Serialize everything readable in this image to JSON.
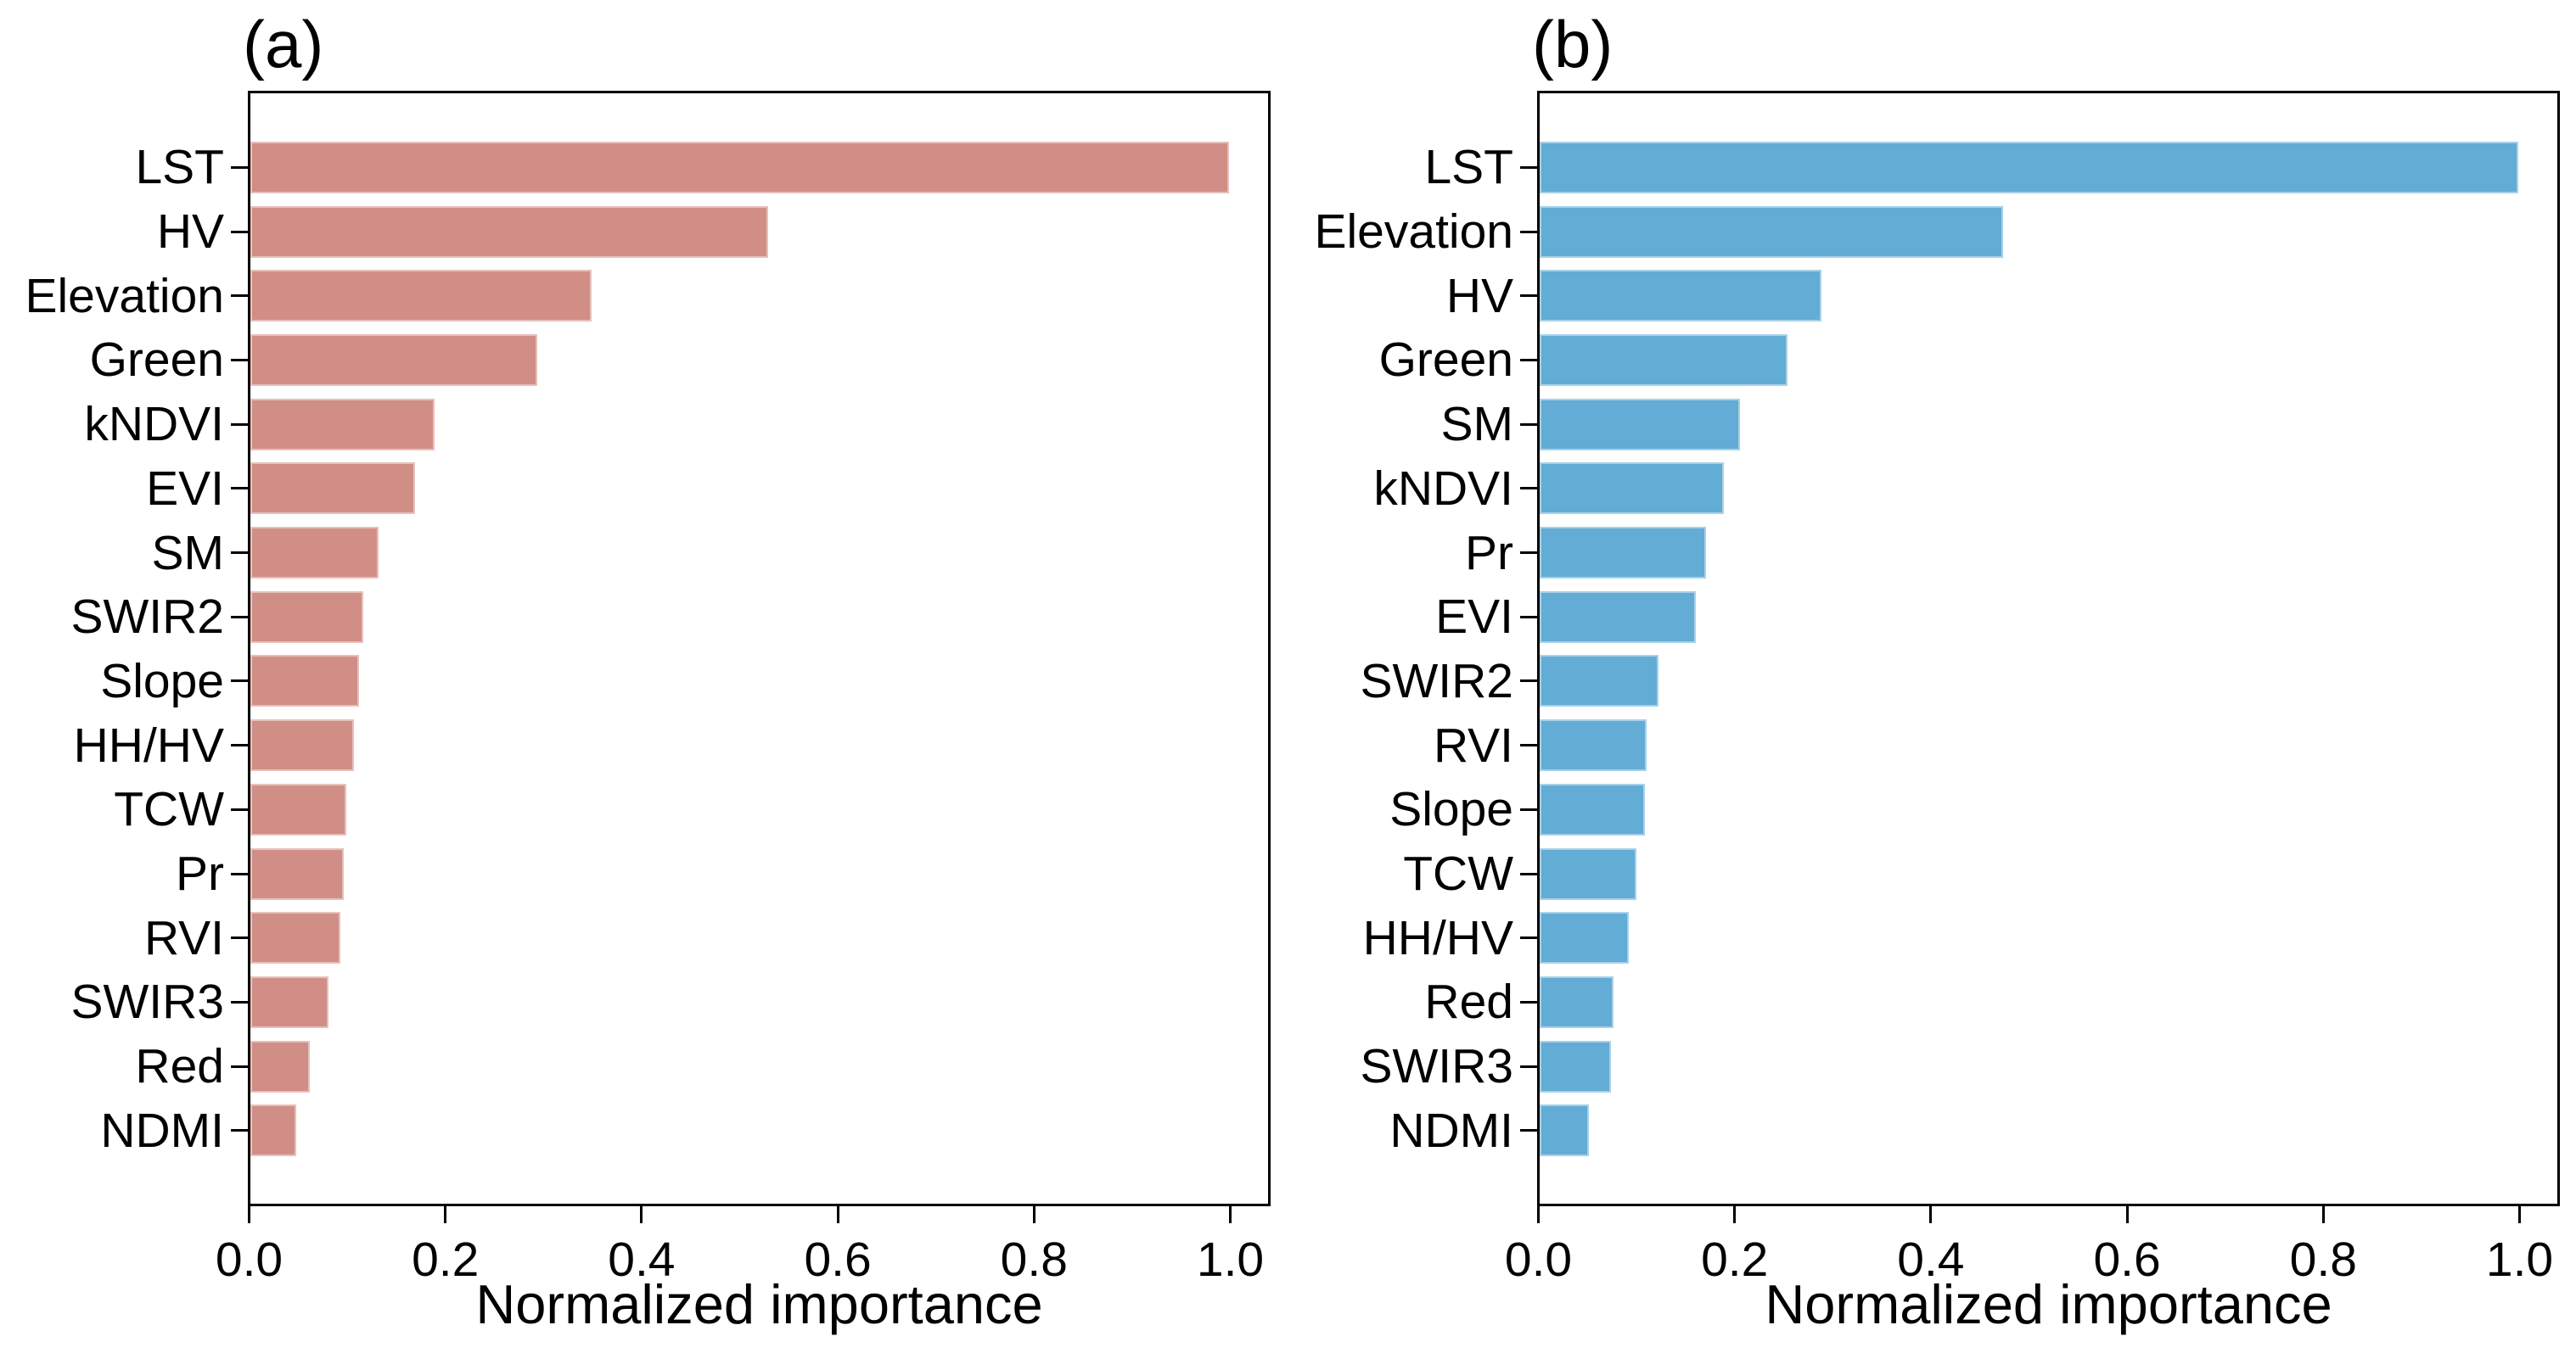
{
  "figure": {
    "background_color": "#ffffff",
    "axis_color": "#000000",
    "text_color": "#000000"
  },
  "chart_data": [
    {
      "type": "bar",
      "orientation": "horizontal",
      "panel_label": "(a)",
      "bar_color": "#d18e86",
      "xlabel": "Normalized importance",
      "xlim": [
        0,
        1.045
      ],
      "xticks": [
        0,
        0.2,
        0.4,
        0.6,
        0.8,
        1.0
      ],
      "xtick_labels": [
        "0.0",
        "0.2",
        "0.4",
        "0.6",
        "0.8",
        "1.0"
      ],
      "grid": false,
      "legend": "none",
      "categories": [
        "LST",
        "HV",
        "Elevation",
        "Green",
        "kNDVI",
        "EVI",
        "SM",
        "SWIR2",
        "Slope",
        "HH/HV",
        "TCW",
        "Pr",
        "RVI",
        "SWIR3",
        "Red",
        "NDMI"
      ],
      "values": [
        1.0,
        0.53,
        0.35,
        0.295,
        0.19,
        0.17,
        0.133,
        0.118,
        0.113,
        0.108,
        0.1,
        0.098,
        0.094,
        0.082,
        0.063,
        0.049
      ]
    },
    {
      "type": "bar",
      "orientation": "horizontal",
      "panel_label": "(b)",
      "bar_color": "#62acd6",
      "xlabel": "Normalized importance",
      "xlim": [
        0,
        1.045
      ],
      "xticks": [
        0,
        0.2,
        0.4,
        0.6,
        0.8,
        1.0
      ],
      "xtick_labels": [
        "0.0",
        "0.2",
        "0.4",
        "0.6",
        "0.8",
        "1.0"
      ],
      "grid": false,
      "legend": "none",
      "categories": [
        "LST",
        "Elevation",
        "HV",
        "Green",
        "SM",
        "kNDVI",
        "Pr",
        "EVI",
        "SWIR2",
        "RVI",
        "Slope",
        "TCW",
        "HH/HV",
        "Red",
        "SWIR3",
        "NDMI"
      ],
      "values": [
        1.0,
        0.475,
        0.29,
        0.255,
        0.207,
        0.19,
        0.172,
        0.162,
        0.124,
        0.112,
        0.11,
        0.101,
        0.093,
        0.078,
        0.075,
        0.053
      ]
    }
  ]
}
